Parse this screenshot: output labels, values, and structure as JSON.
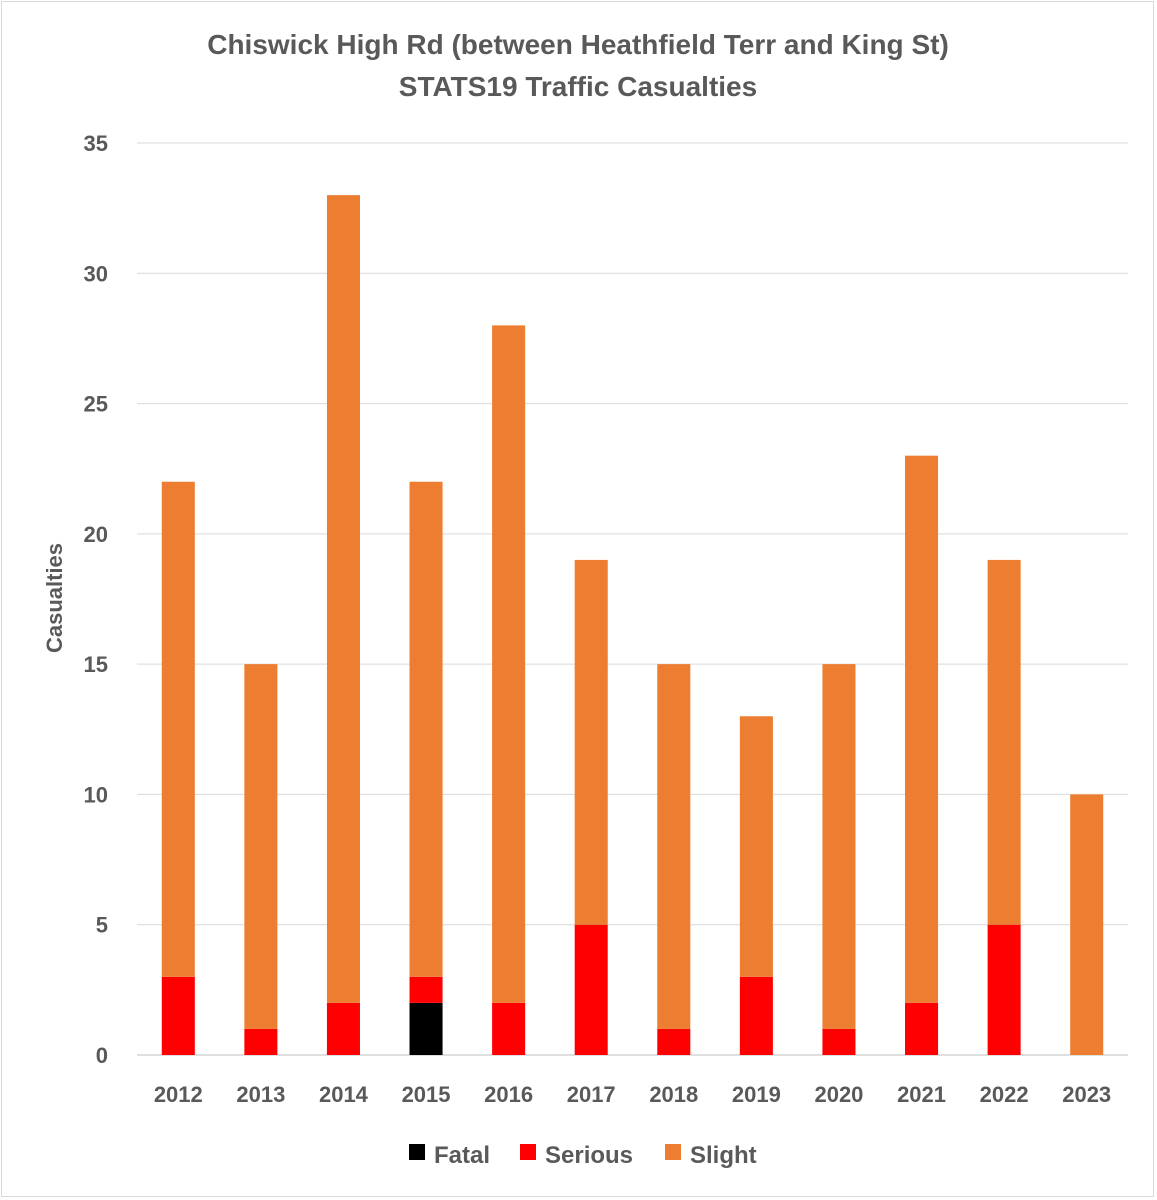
{
  "chart_data": {
    "type": "bar",
    "stacked": true,
    "title": [
      "Chiswick High Rd (between Heathfield Terr and King St)",
      "STATS19 Traffic Casualties"
    ],
    "xlabel": "",
    "ylabel": "Casualties",
    "ylim": [
      0,
      35
    ],
    "yticks": [
      0,
      5,
      10,
      15,
      20,
      25,
      30,
      35
    ],
    "grid": true,
    "legend_position": "bottom",
    "categories": [
      "2012",
      "2013",
      "2014",
      "2015",
      "2016",
      "2017",
      "2018",
      "2019",
      "2020",
      "2021",
      "2022",
      "2023"
    ],
    "series": [
      {
        "name": "Fatal",
        "color": "#000000",
        "values": [
          0,
          0,
          0,
          2,
          0,
          0,
          0,
          0,
          0,
          0,
          0,
          0
        ]
      },
      {
        "name": "Serious",
        "color": "#ff0000",
        "values": [
          3,
          1,
          2,
          1,
          2,
          5,
          1,
          3,
          1,
          2,
          5,
          0
        ]
      },
      {
        "name": "Slight",
        "color": "#ed7d31",
        "values": [
          19,
          14,
          31,
          19,
          26,
          14,
          14,
          10,
          14,
          21,
          14,
          10
        ]
      }
    ]
  }
}
